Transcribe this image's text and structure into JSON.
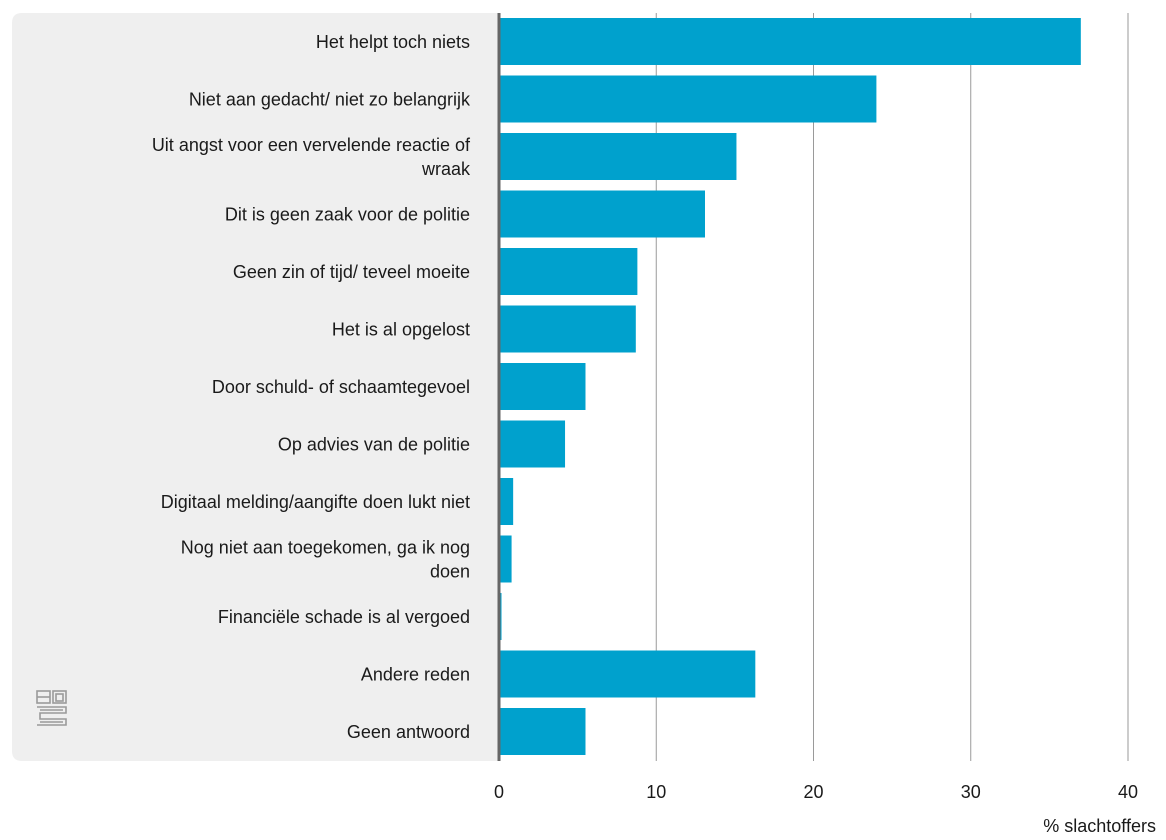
{
  "chart_data": {
    "type": "bar",
    "orientation": "horizontal",
    "categories": [
      [
        "Het helpt toch niets"
      ],
      [
        "Niet aan gedacht/ niet zo belangrijk"
      ],
      [
        "Uit angst voor een vervelende reactie of",
        "wraak"
      ],
      [
        "Dit is geen zaak voor de politie"
      ],
      [
        "Geen zin of tijd/ teveel moeite"
      ],
      [
        "Het is al opgelost"
      ],
      [
        "Door schuld- of schaamtegevoel"
      ],
      [
        "Op advies van de politie"
      ],
      [
        "Digitaal melding/aangifte doen lukt niet"
      ],
      [
        "Nog niet aan toegekomen, ga ik nog",
        "doen"
      ],
      [
        "Financiële schade is al vergoed"
      ],
      [
        "Andere reden"
      ],
      [
        "Geen antwoord"
      ]
    ],
    "values": [
      37.0,
      24.0,
      15.1,
      13.1,
      8.8,
      8.7,
      5.5,
      4.2,
      0.9,
      0.8,
      0.1,
      16.3,
      5.5
    ],
    "xlabel": "% slachtoffers",
    "ylabel": "",
    "xlim": [
      0,
      40
    ],
    "xticks": [
      "0",
      "10",
      "20",
      "30",
      "40"
    ],
    "grid": true,
    "colors": {
      "bar": "#00a1cd",
      "label_panel": "#efefef",
      "grid": "#9a9a9a",
      "axis": "#666666",
      "logo": "#9a9a9a"
    }
  }
}
